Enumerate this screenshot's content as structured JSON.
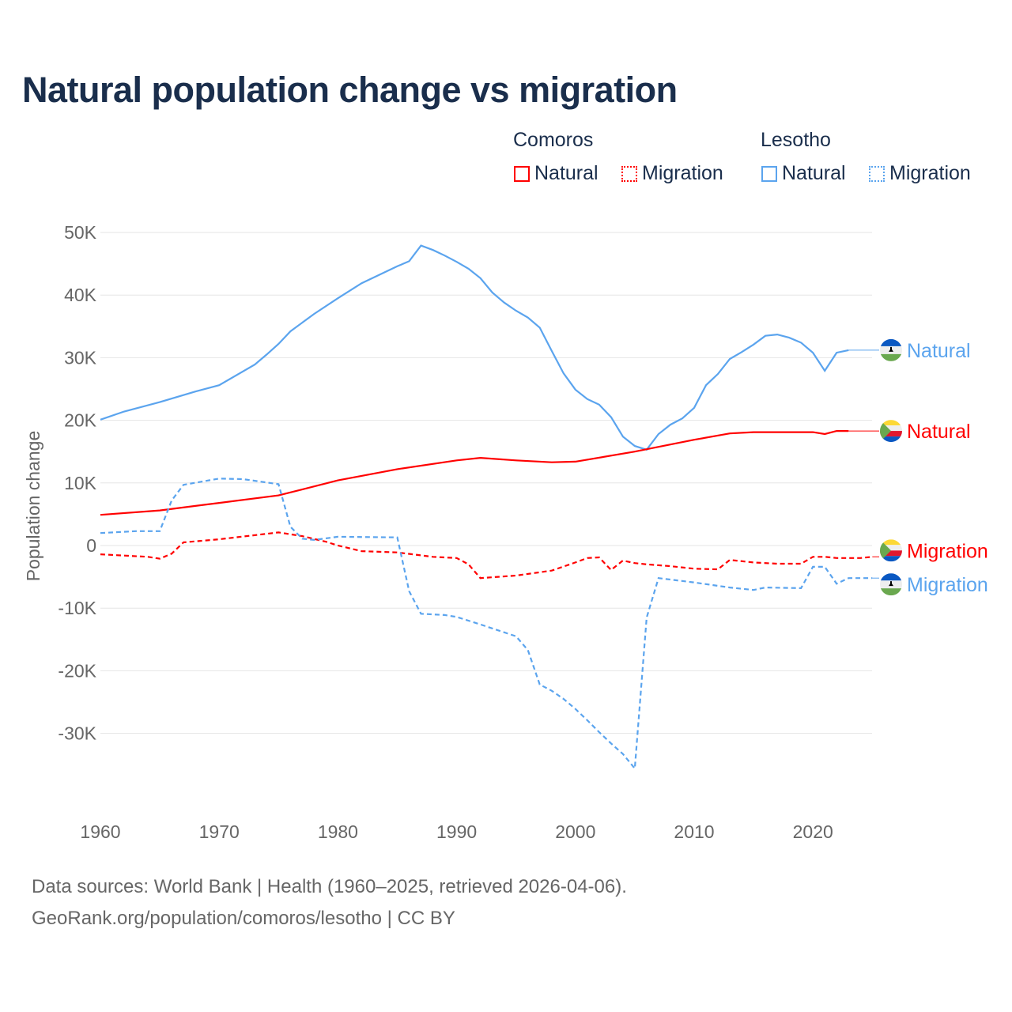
{
  "title": "Natural population change vs migration",
  "legend": {
    "groups": [
      {
        "name": "Comoros",
        "items": [
          {
            "label": "Natural"
          },
          {
            "label": "Migration"
          }
        ]
      },
      {
        "name": "Lesotho",
        "items": [
          {
            "label": "Natural"
          },
          {
            "label": "Migration"
          }
        ]
      }
    ]
  },
  "footer": {
    "line1": "Data sources: World Bank | Health (1960–2025, retrieved 2026-04-06).",
    "line2": "GeoRank.org/population/comoros/lesotho | CC BY"
  },
  "colors": {
    "comoros": "#ff0000",
    "lesotho": "#5ba4ee",
    "grid": "#e6e6e6",
    "axis_text": "#666666"
  },
  "chart_data": {
    "type": "line",
    "title": "Natural population change vs migration",
    "xlabel": "",
    "ylabel": "Population change",
    "xlim": [
      1960,
      2025
    ],
    "ylim": [
      -38000,
      52000
    ],
    "xticks": [
      {
        "v": 1960,
        "label": "1960"
      },
      {
        "v": 1970,
        "label": "1970"
      },
      {
        "v": 1980,
        "label": "1980"
      },
      {
        "v": 1990,
        "label": "1990"
      },
      {
        "v": 2000,
        "label": "2000"
      },
      {
        "v": 2010,
        "label": "2010"
      },
      {
        "v": 2020,
        "label": "2020"
      }
    ],
    "yticks": [
      {
        "v": 50000,
        "label": "50K"
      },
      {
        "v": 40000,
        "label": "40K"
      },
      {
        "v": 30000,
        "label": "30K"
      },
      {
        "v": 20000,
        "label": "20K"
      },
      {
        "v": 10000,
        "label": "10K"
      },
      {
        "v": 0,
        "label": "0"
      },
      {
        "v": -10000,
        "label": "-10K"
      },
      {
        "v": -20000,
        "label": "-20K"
      },
      {
        "v": -30000,
        "label": "-30K"
      }
    ],
    "grid": true,
    "series": [
      {
        "name": "Lesotho Natural",
        "label": "Natural",
        "country": "lesotho",
        "dashed": false,
        "x": [
          1960,
          1962,
          1965,
          1968,
          1970,
          1973,
          1974,
          1975,
          1976,
          1978,
          1980,
          1982,
          1985,
          1986,
          1987,
          1988,
          1989,
          1990,
          1991,
          1992,
          1993,
          1994,
          1995,
          1996,
          1997,
          1998,
          1999,
          2000,
          2001,
          2002,
          2003,
          2004,
          2005,
          2006,
          2007,
          2008,
          2009,
          2010,
          2011,
          2012,
          2013,
          2014,
          2015,
          2016,
          2017,
          2018,
          2019,
          2020,
          2021,
          2022,
          2023
        ],
        "y": [
          20100,
          21400,
          22900,
          24600,
          25600,
          28900,
          30500,
          32200,
          34200,
          37000,
          39500,
          41900,
          44600,
          45400,
          47900,
          47200,
          46300,
          45300,
          44200,
          42700,
          40400,
          38800,
          37500,
          36400,
          34800,
          31100,
          27500,
          24900,
          23400,
          22500,
          20500,
          17400,
          15900,
          15300,
          17800,
          19300,
          20300,
          22000,
          25600,
          27400,
          29800,
          30900,
          32100,
          33500,
          33700,
          33200,
          32400,
          30800,
          27900,
          30800,
          31200
        ]
      },
      {
        "name": "Comoros Natural",
        "label": "Natural",
        "country": "comoros",
        "dashed": false,
        "x": [
          1960,
          1965,
          1970,
          1975,
          1980,
          1985,
          1990,
          1992,
          1995,
          1998,
          2000,
          2005,
          2010,
          2013,
          2015,
          2020,
          2021,
          2022,
          2023
        ],
        "y": [
          4900,
          5600,
          6800,
          8000,
          10400,
          12200,
          13600,
          14000,
          13600,
          13300,
          13400,
          15000,
          16900,
          17900,
          18100,
          18100,
          17800,
          18300,
          18300
        ]
      },
      {
        "name": "Comoros Migration",
        "label": "Migration",
        "country": "comoros",
        "dashed": true,
        "x": [
          1960,
          1964,
          1965,
          1966,
          1967,
          1970,
          1975,
          1977,
          1979,
          1980,
          1982,
          1985,
          1988,
          1990,
          1991,
          1992,
          1995,
          1998,
          2000,
          2001,
          2002,
          2003,
          2004,
          2005,
          2006,
          2008,
          2010,
          2012,
          2013,
          2015,
          2017,
          2019,
          2020,
          2021,
          2022,
          2024,
          2025
        ],
        "y": [
          -1400,
          -1800,
          -2100,
          -1300,
          500,
          1000,
          2100,
          1500,
          600,
          0,
          -900,
          -1100,
          -1800,
          -2000,
          -3000,
          -5200,
          -4800,
          -4000,
          -2700,
          -2000,
          -1900,
          -3900,
          -2400,
          -2800,
          -3000,
          -3300,
          -3700,
          -3800,
          -2300,
          -2700,
          -2900,
          -2900,
          -1800,
          -1800,
          -2000,
          -2000,
          -1800
        ]
      },
      {
        "name": "Lesotho Migration",
        "label": "Migration",
        "country": "lesotho",
        "dashed": true,
        "x": [
          1960,
          1963,
          1965,
          1966,
          1967,
          1970,
          1972,
          1975,
          1976,
          1977,
          1978,
          1980,
          1985,
          1986,
          1987,
          1989,
          1990,
          1992,
          1995,
          1996,
          1997,
          1998,
          1999,
          2000,
          2001,
          2002,
          2003,
          2004,
          2005,
          2006,
          2007,
          2010,
          2013,
          2015,
          2016,
          2019,
          2020,
          2021,
          2022,
          2023,
          2025
        ],
        "y": [
          2000,
          2300,
          2300,
          7200,
          9700,
          10700,
          10600,
          9800,
          3000,
          1100,
          900,
          1400,
          1300,
          -7300,
          -10900,
          -11100,
          -11400,
          -12600,
          -14500,
          -16700,
          -22200,
          -23200,
          -24500,
          -26100,
          -27900,
          -29800,
          -31600,
          -33300,
          -35600,
          -11500,
          -5200,
          -5900,
          -6700,
          -7100,
          -6700,
          -6800,
          -3400,
          -3400,
          -6100,
          -5200,
          -5200
        ]
      }
    ],
    "end_labels": [
      {
        "label": "Natural",
        "country": "lesotho"
      },
      {
        "label": "Natural",
        "country": "comoros"
      },
      {
        "label": "Migration",
        "country": "comoros"
      },
      {
        "label": "Migration",
        "country": "lesotho"
      }
    ]
  }
}
